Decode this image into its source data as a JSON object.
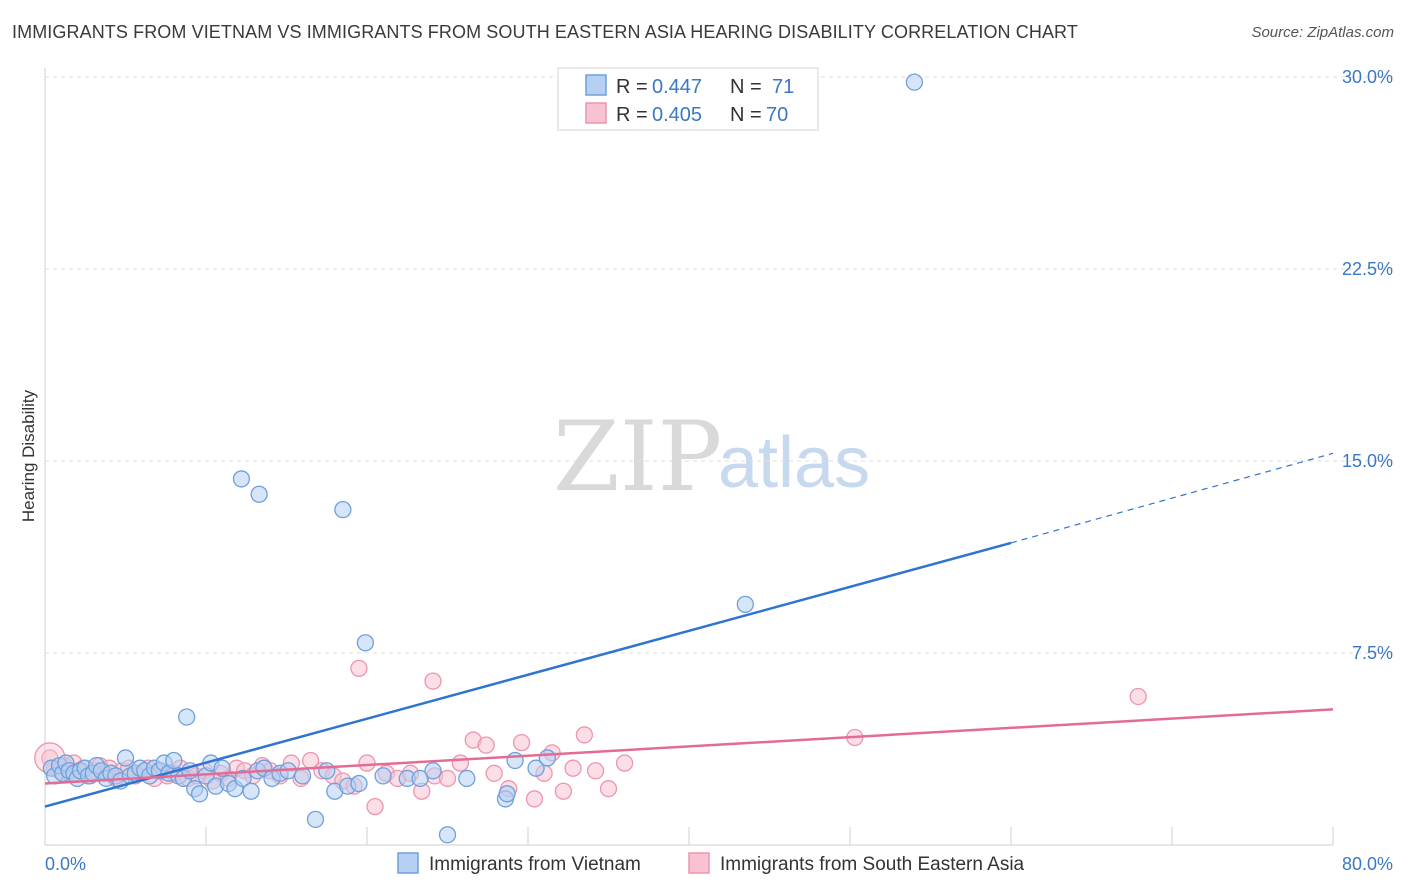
{
  "title": "IMMIGRANTS FROM VIETNAM VS IMMIGRANTS FROM SOUTH EASTERN ASIA HEARING DISABILITY CORRELATION CHART",
  "source": "Source: ZipAtlas.com",
  "watermark": {
    "zip": "ZIP",
    "atlas": "atlas"
  },
  "colors": {
    "blue_fill": "#b5d0f2",
    "blue_stroke": "#6fa0dc",
    "blue_line": "#2f74d0",
    "pink_fill": "#f7c3d2",
    "pink_stroke": "#ee95ad",
    "pink_line": "#e46b94",
    "grid": "#dcdcdc",
    "axis_text": "#3b78c4"
  },
  "legend": {
    "series1": {
      "r_label": "R =",
      "r_value": "0.447",
      "n_label": "N =",
      "n_value": "71"
    },
    "series2": {
      "r_label": "R =",
      "r_value": "0.405",
      "n_label": "N =",
      "n_value": "70"
    }
  },
  "chart_data": {
    "type": "scatter",
    "title": "IMMIGRANTS FROM VIETNAM VS IMMIGRANTS FROM SOUTH EASTERN ASIA HEARING DISABILITY CORRELATION CHART",
    "xlabel": "",
    "ylabel": "Hearing Disability",
    "xlim": [
      0,
      80
    ],
    "ylim": [
      0,
      31
    ],
    "x_tick_labels": [
      "0.0%",
      "80.0%"
    ],
    "y_ticks": [
      7.5,
      15.0,
      22.5,
      30.0
    ],
    "y_tick_labels": [
      "7.5%",
      "15.0%",
      "22.5%",
      "30.0%"
    ],
    "legend_position": "top-center",
    "series": [
      {
        "name": "Immigrants from Vietnam",
        "color": "blue",
        "r": 0.447,
        "n": 71,
        "trend": {
          "x0": 0,
          "y0": 1.5,
          "x1": 60,
          "y1": 11.8,
          "dash_to_x": 80,
          "dash_to_y": 15.3
        },
        "points": [
          [
            0.4,
            3.0
          ],
          [
            0.6,
            2.7
          ],
          [
            0.9,
            3.1
          ],
          [
            1.1,
            2.8
          ],
          [
            1.3,
            3.2
          ],
          [
            1.5,
            2.9
          ],
          [
            1.8,
            2.8
          ],
          [
            2.0,
            2.6
          ],
          [
            2.2,
            2.9
          ],
          [
            2.5,
            3.0
          ],
          [
            2.7,
            2.7
          ],
          [
            3.0,
            2.8
          ],
          [
            3.2,
            3.1
          ],
          [
            3.5,
            2.9
          ],
          [
            3.8,
            2.6
          ],
          [
            4.1,
            2.8
          ],
          [
            4.4,
            2.7
          ],
          [
            4.7,
            2.5
          ],
          [
            5.0,
            3.4
          ],
          [
            5.3,
            2.7
          ],
          [
            5.6,
            2.8
          ],
          [
            5.9,
            3.0
          ],
          [
            6.2,
            2.9
          ],
          [
            6.5,
            2.7
          ],
          [
            6.8,
            3.0
          ],
          [
            7.1,
            2.9
          ],
          [
            7.4,
            3.2
          ],
          [
            7.7,
            2.8
          ],
          [
            8.0,
            3.3
          ],
          [
            8.3,
            2.7
          ],
          [
            8.6,
            2.6
          ],
          [
            8.8,
            5.0
          ],
          [
            9.0,
            2.9
          ],
          [
            9.3,
            2.2
          ],
          [
            9.6,
            2.0
          ],
          [
            10.0,
            2.7
          ],
          [
            10.3,
            3.2
          ],
          [
            10.6,
            2.3
          ],
          [
            11.0,
            3.0
          ],
          [
            11.4,
            2.4
          ],
          [
            11.8,
            2.2
          ],
          [
            12.3,
            2.6
          ],
          [
            12.8,
            2.1
          ],
          [
            13.2,
            2.9
          ],
          [
            13.6,
            3.0
          ],
          [
            14.1,
            2.6
          ],
          [
            14.6,
            2.8
          ],
          [
            15.1,
            2.9
          ],
          [
            16.0,
            2.7
          ],
          [
            16.8,
            1.0
          ],
          [
            17.5,
            2.9
          ],
          [
            18.0,
            2.1
          ],
          [
            18.8,
            2.3
          ],
          [
            19.5,
            2.4
          ],
          [
            21.0,
            2.7
          ],
          [
            22.5,
            2.6
          ],
          [
            23.3,
            2.6
          ],
          [
            24.1,
            2.9
          ],
          [
            25.0,
            0.4
          ],
          [
            26.2,
            2.6
          ],
          [
            28.6,
            1.8
          ],
          [
            29.2,
            3.3
          ],
          [
            30.5,
            3.0
          ],
          [
            31.2,
            3.4
          ],
          [
            12.2,
            14.3
          ],
          [
            13.3,
            13.7
          ],
          [
            18.5,
            13.1
          ],
          [
            19.9,
            7.9
          ],
          [
            43.5,
            9.4
          ],
          [
            54.0,
            29.8
          ],
          [
            28.7,
            2.0
          ]
        ]
      },
      {
        "name": "Immigrants from South Eastern Asia",
        "color": "pink",
        "r": 0.405,
        "n": 70,
        "trend": {
          "x0": 0,
          "y0": 2.4,
          "x1": 80,
          "y1": 5.3
        },
        "points": [
          [
            0.3,
            3.4
          ],
          [
            0.6,
            3.0
          ],
          [
            0.9,
            2.9
          ],
          [
            1.2,
            3.1
          ],
          [
            1.5,
            2.8
          ],
          [
            1.8,
            3.2
          ],
          [
            2.1,
            2.9
          ],
          [
            2.4,
            3.0
          ],
          [
            2.8,
            2.7
          ],
          [
            3.1,
            2.9
          ],
          [
            3.4,
            3.1
          ],
          [
            3.7,
            2.8
          ],
          [
            4.0,
            3.0
          ],
          [
            4.4,
            2.6
          ],
          [
            4.8,
            2.9
          ],
          [
            5.2,
            3.0
          ],
          [
            5.6,
            2.7
          ],
          [
            6.0,
            2.8
          ],
          [
            6.4,
            3.0
          ],
          [
            6.8,
            2.6
          ],
          [
            7.2,
            2.9
          ],
          [
            7.6,
            2.7
          ],
          [
            8.0,
            2.8
          ],
          [
            8.4,
            3.0
          ],
          [
            8.9,
            2.6
          ],
          [
            9.4,
            2.7
          ],
          [
            9.9,
            2.9
          ],
          [
            10.4,
            2.5
          ],
          [
            10.9,
            2.8
          ],
          [
            11.4,
            2.6
          ],
          [
            11.9,
            3.0
          ],
          [
            12.4,
            2.9
          ],
          [
            12.9,
            2.7
          ],
          [
            13.5,
            3.1
          ],
          [
            14.0,
            2.9
          ],
          [
            14.6,
            2.7
          ],
          [
            15.3,
            3.2
          ],
          [
            15.9,
            2.6
          ],
          [
            16.5,
            3.3
          ],
          [
            17.2,
            2.9
          ],
          [
            17.9,
            2.7
          ],
          [
            18.5,
            2.5
          ],
          [
            19.2,
            2.3
          ],
          [
            20.0,
            3.2
          ],
          [
            20.5,
            1.5
          ],
          [
            21.2,
            2.8
          ],
          [
            21.9,
            2.6
          ],
          [
            22.7,
            2.8
          ],
          [
            23.4,
            2.1
          ],
          [
            24.2,
            2.7
          ],
          [
            25.0,
            2.6
          ],
          [
            25.8,
            3.2
          ],
          [
            26.6,
            4.1
          ],
          [
            27.4,
            3.9
          ],
          [
            27.9,
            2.8
          ],
          [
            28.8,
            2.2
          ],
          [
            29.6,
            4.0
          ],
          [
            30.4,
            1.8
          ],
          [
            31.0,
            2.8
          ],
          [
            31.5,
            3.6
          ],
          [
            32.2,
            2.1
          ],
          [
            32.8,
            3.0
          ],
          [
            33.5,
            4.3
          ],
          [
            34.2,
            2.9
          ],
          [
            35.0,
            2.2
          ],
          [
            36.0,
            3.2
          ],
          [
            19.5,
            6.9
          ],
          [
            24.1,
            6.4
          ],
          [
            50.3,
            4.2
          ],
          [
            67.9,
            5.8
          ]
        ]
      }
    ]
  }
}
